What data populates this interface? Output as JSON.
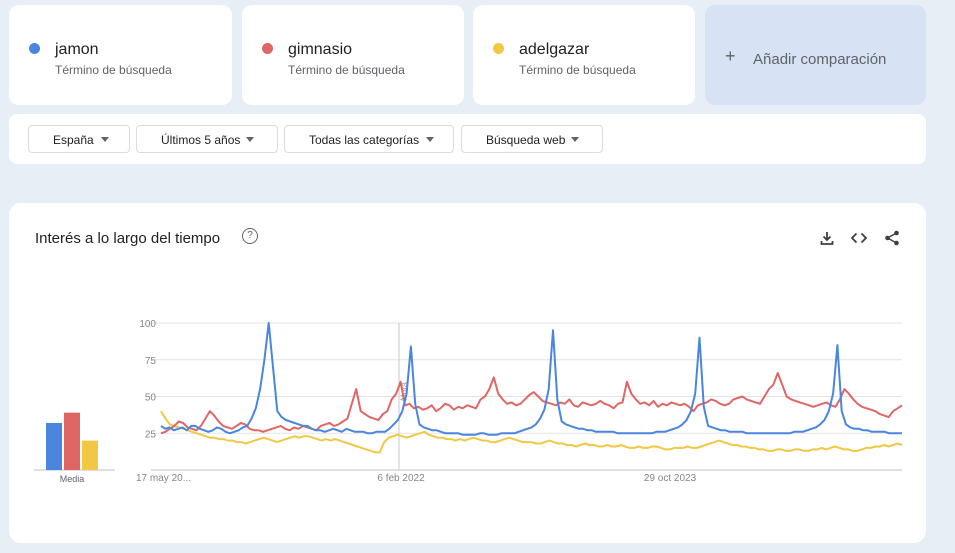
{
  "terms": [
    {
      "name": "jamon",
      "subtitle": "Término de búsqueda",
      "color": "#4a85df"
    },
    {
      "name": "gimnasio",
      "subtitle": "Término de búsqueda",
      "color": "#e06666"
    },
    {
      "name": "adelgazar",
      "subtitle": "Término de búsqueda",
      "color": "#f2c744"
    }
  ],
  "add_comparison": {
    "plus": "+",
    "label": "Añadir comparación"
  },
  "filters": {
    "region": "España",
    "period": "Últimos 5 años",
    "category": "Todas las categorías",
    "search_type": "Búsqueda web"
  },
  "panel": {
    "title": "Interés a lo largo del tiempo",
    "help": "?",
    "tool_icons": [
      "download-icon",
      "embed-icon",
      "share-icon"
    ]
  },
  "chart_data": {
    "type": "line",
    "y_ticks": [
      "100",
      "75",
      "50",
      "25"
    ],
    "ylim": [
      0,
      100
    ],
    "x_labels": [
      "17 may 20...",
      "6 feb 2022",
      "29 oct 2023"
    ],
    "annotation": "Nota",
    "grid": true,
    "average": {
      "label": "Media",
      "values": [
        32,
        39,
        20
      ]
    },
    "series": [
      {
        "name": "jamon",
        "color": "#4a85df",
        "values": [
          30,
          28,
          29,
          27,
          28,
          29,
          27,
          30,
          30,
          28,
          27,
          26,
          27,
          29,
          28,
          26,
          25,
          26,
          27,
          29,
          30,
          35,
          42,
          55,
          75,
          100,
          70,
          40,
          36,
          34,
          33,
          32,
          31,
          30,
          30,
          28,
          27,
          27,
          26,
          27,
          28,
          27,
          26,
          28,
          27,
          26,
          26,
          26,
          25,
          25,
          26,
          26,
          26,
          28,
          31,
          34,
          40,
          52,
          84,
          45,
          31,
          29,
          28,
          27,
          27,
          26,
          25,
          25,
          25,
          25,
          24,
          24,
          24,
          24,
          25,
          25,
          24,
          24,
          24,
          25,
          25,
          25,
          25,
          26,
          27,
          28,
          29,
          31,
          35,
          41,
          55,
          95,
          48,
          33,
          31,
          30,
          29,
          28,
          28,
          27,
          27,
          26,
          26,
          26,
          26,
          26,
          25,
          25,
          25,
          25,
          25,
          25,
          25,
          25,
          25,
          26,
          26,
          26,
          27,
          28,
          29,
          31,
          34,
          40,
          52,
          90,
          43,
          30,
          29,
          28,
          27,
          27,
          26,
          26,
          26,
          26,
          25,
          25,
          25,
          25,
          25,
          25,
          25,
          25,
          25,
          25,
          25,
          26,
          26,
          26,
          27,
          28,
          29,
          31,
          34,
          40,
          52,
          85,
          40,
          31,
          29,
          28,
          28,
          27,
          27,
          26,
          26,
          26,
          26,
          25,
          25,
          25,
          25
        ]
      },
      {
        "name": "gimnasio",
        "color": "#e06666",
        "values": [
          25,
          26,
          28,
          30,
          33,
          32,
          29,
          28,
          27,
          30,
          35,
          40,
          37,
          33,
          30,
          29,
          28,
          30,
          32,
          31,
          28,
          27,
          27,
          26,
          27,
          28,
          29,
          30,
          28,
          27,
          29,
          28,
          30,
          29,
          28,
          27,
          30,
          31,
          32,
          30,
          31,
          33,
          35,
          45,
          55,
          40,
          38,
          36,
          35,
          34,
          38,
          40,
          48,
          52,
          60,
          44,
          45,
          42,
          43,
          41,
          42,
          44,
          40,
          42,
          45,
          44,
          41,
          43,
          42,
          44,
          43,
          42,
          48,
          50,
          55,
          63,
          52,
          48,
          45,
          46,
          44,
          45,
          48,
          51,
          53,
          50,
          47,
          46,
          45,
          44,
          46,
          45,
          48,
          44,
          43,
          46,
          45,
          44,
          45,
          47,
          45,
          44,
          42,
          45,
          46,
          60,
          52,
          48,
          45,
          46,
          44,
          47,
          43,
          45,
          44,
          46,
          45,
          44,
          45,
          43,
          40,
          44,
          45,
          46,
          48,
          47,
          45,
          44,
          45,
          48,
          49,
          50,
          48,
          47,
          46,
          45,
          50,
          55,
          58,
          66,
          58,
          50,
          48,
          47,
          46,
          45,
          44,
          43,
          44,
          45,
          46,
          44,
          43,
          48,
          55,
          52,
          48,
          45,
          43,
          42,
          41,
          40,
          38,
          37,
          36,
          40,
          42,
          44
        ]
      },
      {
        "name": "adelgazar",
        "color": "#f2c744",
        "values": [
          40,
          35,
          31,
          30,
          29,
          28,
          27,
          26,
          25,
          24,
          23,
          22,
          22,
          21,
          21,
          20,
          20,
          19,
          19,
          18,
          19,
          20,
          21,
          22,
          21,
          20,
          19,
          20,
          21,
          22,
          23,
          22,
          23,
          23,
          22,
          21,
          20,
          21,
          20,
          21,
          20,
          19,
          18,
          17,
          16,
          15,
          14,
          13,
          12,
          12,
          19,
          22,
          23,
          24,
          23,
          22,
          23,
          24,
          25,
          26,
          24,
          23,
          22,
          22,
          21,
          21,
          20,
          21,
          20,
          21,
          22,
          21,
          20,
          20,
          19,
          19,
          20,
          21,
          22,
          21,
          20,
          19,
          19,
          19,
          18,
          18,
          19,
          20,
          19,
          18,
          18,
          17,
          17,
          16,
          17,
          18,
          17,
          17,
          16,
          16,
          17,
          16,
          16,
          17,
          16,
          15,
          15,
          16,
          15,
          15,
          16,
          16,
          15,
          14,
          14,
          15,
          15,
          15,
          16,
          15,
          15,
          16,
          17,
          18,
          19,
          20,
          19,
          18,
          17,
          17,
          16,
          16,
          15,
          15,
          14,
          14,
          13,
          13,
          14,
          14,
          13,
          13,
          14,
          14,
          13,
          13,
          14,
          14,
          15,
          14,
          15,
          16,
          15,
          14,
          14,
          13,
          13,
          14,
          15,
          15,
          16,
          16,
          17,
          16,
          17,
          18,
          17
        ]
      }
    ]
  }
}
